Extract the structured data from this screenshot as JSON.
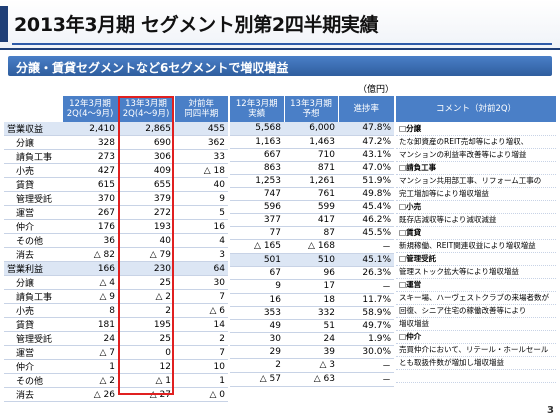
{
  "title": "2013年3月期 セグメント別第2四半期実績",
  "subtitle": "分譲・賃貸セグメントなど6セグメントで増収増益",
  "unit": "（億円）",
  "left_table": {
    "headers": [
      " ",
      "12年3月期\n2Q(4〜9月)",
      "13年3月期\n2Q(4〜9月)",
      "対前年\n同四半期"
    ],
    "rows": [
      {
        "label": "営業収益",
        "total": true,
        "cells": [
          "2,410",
          "2,865",
          "455"
        ]
      },
      {
        "label": "分譲",
        "total": false,
        "cells": [
          "328",
          "690",
          "362"
        ]
      },
      {
        "label": "請負工事",
        "total": false,
        "cells": [
          "273",
          "306",
          "33"
        ]
      },
      {
        "label": "小売",
        "total": false,
        "cells": [
          "427",
          "409",
          "△ 18"
        ]
      },
      {
        "label": "賃貸",
        "total": false,
        "cells": [
          "615",
          "655",
          "40"
        ]
      },
      {
        "label": "管理受託",
        "total": false,
        "cells": [
          "370",
          "379",
          "9"
        ]
      },
      {
        "label": "運営",
        "total": false,
        "cells": [
          "267",
          "272",
          "5"
        ]
      },
      {
        "label": "仲介",
        "total": false,
        "cells": [
          "176",
          "193",
          "16"
        ]
      },
      {
        "label": "その他",
        "total": false,
        "cells": [
          "36",
          "40",
          "4"
        ]
      },
      {
        "label": "消去",
        "total": false,
        "cells": [
          "△ 82",
          "△ 79",
          "3"
        ]
      },
      {
        "label": "営業利益",
        "total": true,
        "cells": [
          "166",
          "230",
          "64"
        ]
      },
      {
        "label": "分譲",
        "total": false,
        "cells": [
          "△ 4",
          "25",
          "30"
        ]
      },
      {
        "label": "請負工事",
        "total": false,
        "cells": [
          "△ 9",
          "△ 2",
          "7"
        ]
      },
      {
        "label": "小売",
        "total": false,
        "cells": [
          "8",
          "2",
          "△ 6"
        ]
      },
      {
        "label": "賃貸",
        "total": false,
        "cells": [
          "181",
          "195",
          "14"
        ]
      },
      {
        "label": "管理受託",
        "total": false,
        "cells": [
          "24",
          "25",
          "2"
        ]
      },
      {
        "label": "運営",
        "total": false,
        "cells": [
          "△ 7",
          "0",
          "7"
        ]
      },
      {
        "label": "仲介",
        "total": false,
        "cells": [
          "1",
          "12",
          "10"
        ]
      },
      {
        "label": "その他",
        "total": false,
        "cells": [
          "△ 2",
          "△ 1",
          "1"
        ]
      },
      {
        "label": "消去",
        "total": false,
        "cells": [
          "△ 26",
          "△ 27",
          "△ 0"
        ]
      }
    ]
  },
  "mid_table": {
    "headers": [
      "12年3月期\n実績",
      "13年3月期\n予想",
      "進捗率"
    ],
    "rows": [
      [
        "5,568",
        "6,000",
        "47.8%"
      ],
      [
        "1,163",
        "1,463",
        "47.2%"
      ],
      [
        "667",
        "710",
        "43.1%"
      ],
      [
        "863",
        "871",
        "47.0%"
      ],
      [
        "1,253",
        "1,261",
        "51.9%"
      ],
      [
        "747",
        "761",
        "49.8%"
      ],
      [
        "596",
        "599",
        "45.4%"
      ],
      [
        "377",
        "417",
        "46.2%"
      ],
      [
        "77",
        "87",
        "45.5%"
      ],
      [
        "△ 165",
        "△ 168",
        "－"
      ],
      [
        "501",
        "510",
        "45.1%"
      ],
      [
        "67",
        "96",
        "26.3%"
      ],
      [
        "9",
        "17",
        "－"
      ],
      [
        "16",
        "18",
        "11.7%"
      ],
      [
        "353",
        "332",
        "58.9%"
      ],
      [
        "49",
        "51",
        "49.7%"
      ],
      [
        "30",
        "24",
        "1.9%"
      ],
      [
        "29",
        "39",
        "30.0%"
      ],
      [
        "2",
        "△ 3",
        "－"
      ],
      [
        "△ 57",
        "△ 63",
        "－"
      ]
    ]
  },
  "comments": {
    "header": "コメント（対前2Q）",
    "lines": [
      {
        "text": "□分譲",
        "head": true
      },
      {
        "text": "たな卸資産のREIT売却等により増収、",
        "head": false
      },
      {
        "text": "マンションの利益率改善等により増益",
        "head": false
      },
      {
        "text": "□請負工事",
        "head": true
      },
      {
        "text": "マンション共用部工事、リフォーム工事の",
        "head": false
      },
      {
        "text": "完工増加等により増収増益",
        "head": false
      },
      {
        "text": "□小売",
        "head": true
      },
      {
        "text": "既存店減収等により減収減益",
        "head": false
      },
      {
        "text": "□賃貸",
        "head": true
      },
      {
        "text": "新規稼働、REIT関連収益により増収増益",
        "head": false
      },
      {
        "text": "□管理受託",
        "head": true
      },
      {
        "text": "管理ストック拡大等により増収増益",
        "head": false
      },
      {
        "text": "□運営",
        "head": true
      },
      {
        "text": "スキー場、ハーヴェストクラブの来場者数が",
        "head": false
      },
      {
        "text": "回復、シニア住宅の稼働改善等により",
        "head": false
      },
      {
        "text": "増収増益",
        "head": false
      },
      {
        "text": "□仲介",
        "head": true
      },
      {
        "text": "売買仲介において、リテール・ホールセール",
        "head": false
      },
      {
        "text": "とも取扱件数が増加し増収増益",
        "head": false
      },
      {
        "text": "",
        "head": false
      }
    ]
  },
  "page_number": "3",
  "colors": {
    "header_blue": "#4a7fc7",
    "title_navy": "#1f3f77",
    "highlight_red": "#e02020",
    "total_row": "#dce6f4"
  }
}
